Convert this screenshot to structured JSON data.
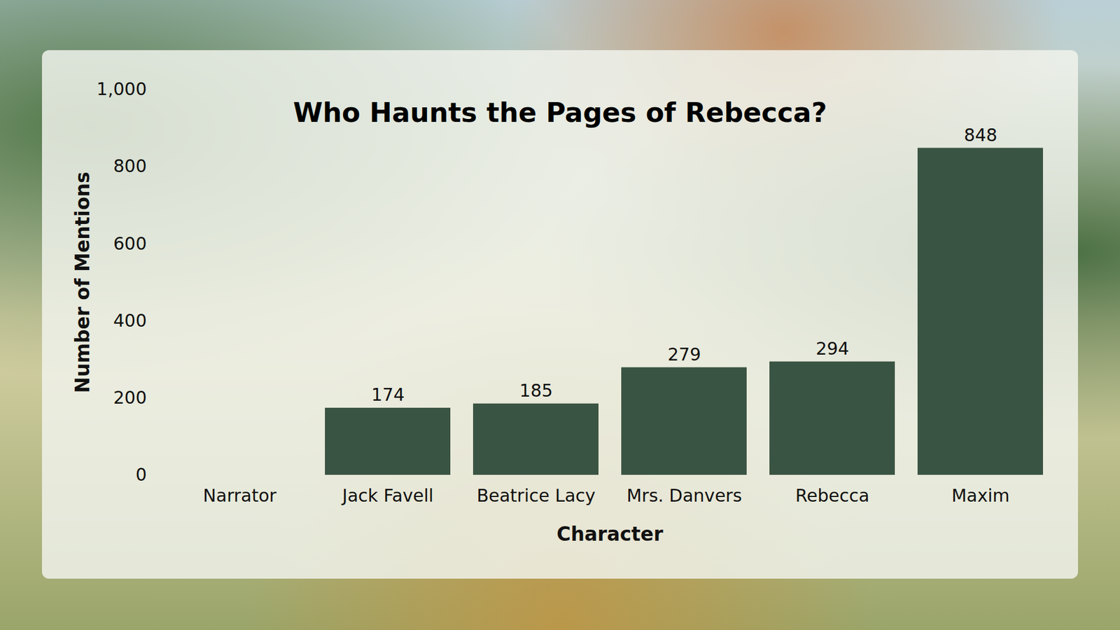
{
  "chart_data": {
    "type": "bar",
    "title": "Who Haunts the Pages of Rebecca?",
    "x_label": "Character",
    "y_label": "Number of Mentions",
    "categories": [
      "Narrator",
      "Jack Favell",
      "Beatrice Lacy",
      "Mrs. Danvers",
      "Rebecca",
      "Maxim"
    ],
    "values": [
      null,
      174,
      185,
      279,
      294,
      848
    ],
    "color": "#3a5443",
    "ylim": [
      0,
      1000
    ],
    "yticks": [
      0,
      200,
      400,
      600,
      800,
      1000
    ],
    "grid": false,
    "data_labels": true
  }
}
